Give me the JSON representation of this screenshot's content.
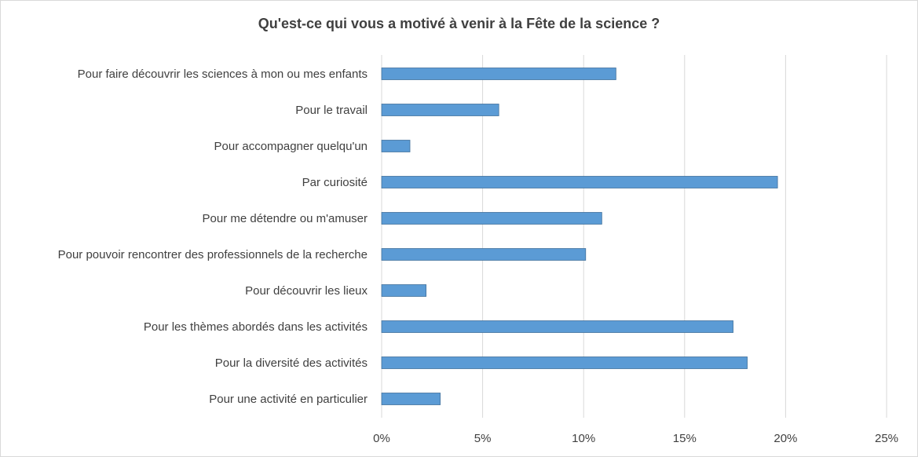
{
  "chart_data": {
    "type": "bar",
    "orientation": "horizontal",
    "title": "Qu'est-ce qui vous a motivé à venir à la Fête de la science ?",
    "categories": [
      "Pour faire découvrir les sciences à mon ou mes enfants",
      "Pour le travail",
      "Pour accompagner quelqu'un",
      "Par curiosité",
      "Pour me détendre ou m'amuser",
      "Pour pouvoir rencontrer des professionnels de la recherche",
      "Pour découvrir les lieux",
      "Pour les thèmes abordés dans les activités",
      "Pour la diversité des activités",
      "Pour une activité en particulier"
    ],
    "values": [
      11.6,
      5.8,
      1.4,
      19.6,
      10.9,
      10.1,
      2.2,
      17.4,
      18.1,
      2.9
    ],
    "xlim": [
      0,
      25
    ],
    "xticks": [
      "0%",
      "5%",
      "10%",
      "15%",
      "20%",
      "25%"
    ],
    "xlabel": "",
    "ylabel": "",
    "grid": "vertical",
    "legend": "none",
    "colors": {
      "bar": "#5b9bd5",
      "bar_stroke": "#41719c",
      "grid": "#d9d9d9",
      "text": "#404040"
    }
  }
}
